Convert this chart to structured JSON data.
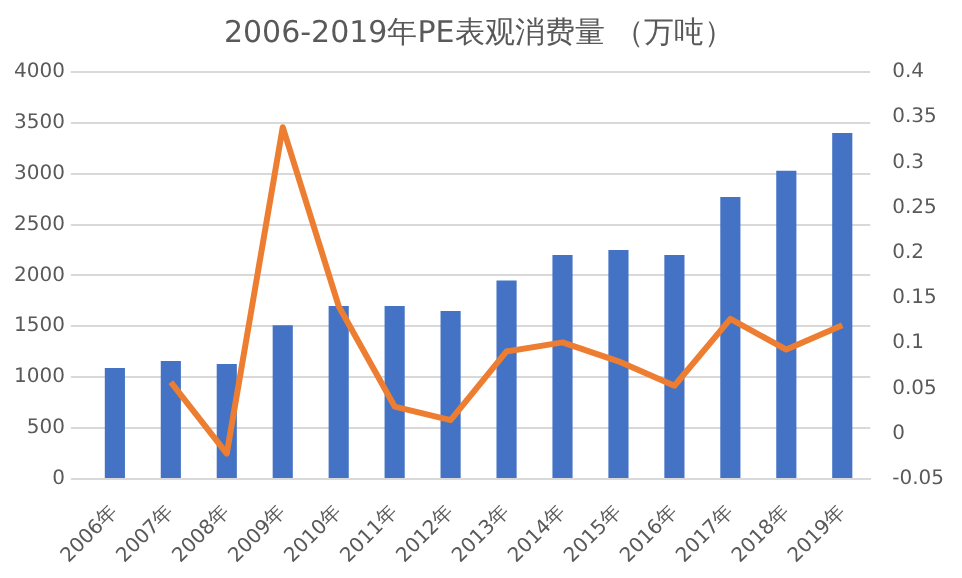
{
  "chart_data": {
    "type": "bar",
    "title": "2006-2019年PE表观消费量 （万吨）",
    "categories": [
      "2006年",
      "2007年",
      "2008年",
      "2009年",
      "2010年",
      "2011年",
      "2012年",
      "2013年",
      "2014年",
      "2015年",
      "2016年",
      "2017年",
      "2018年",
      "2019年"
    ],
    "series": [
      {
        "color": "#4472c4",
        "values": [
          1090,
          1160,
          1130,
          1510,
          1700,
          1700,
          1650,
          1950,
          2200,
          2250,
          2200,
          2770,
          3030,
          3400
        ]
      },
      {
        "type": "line",
        "axis": "y2",
        "color": "#ed7d31",
        "marker": "none",
        "values": [
          null,
          0.057,
          -0.022,
          0.339,
          0.141,
          0.03,
          0.015,
          0.091,
          0.101,
          0.08,
          0.053,
          0.127,
          0.093,
          0.12
        ]
      }
    ],
    "ylim": [
      0,
      4000
    ],
    "yticks": [
      0,
      500,
      1000,
      1500,
      2000,
      2500,
      3000,
      3500,
      4000
    ],
    "y2lim": [
      -0.05,
      0.4
    ],
    "y2ticks": [
      -0.05,
      0,
      0.05,
      0.1,
      0.15,
      0.2,
      0.25,
      0.3,
      0.35,
      0.4
    ],
    "grid": "y",
    "legend": false
  }
}
